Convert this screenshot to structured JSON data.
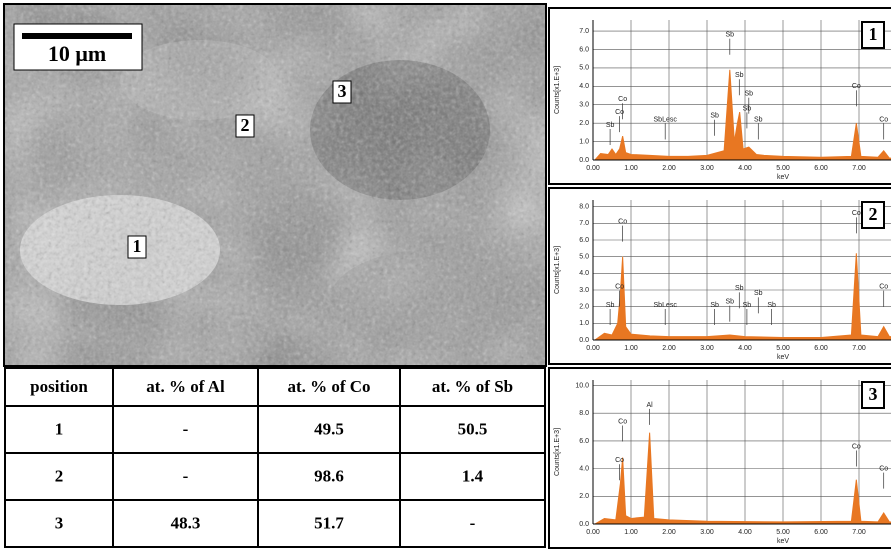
{
  "image": {
    "scale_bar": "10 μm",
    "markers": [
      "1",
      "2",
      "3"
    ]
  },
  "table": {
    "headers": [
      "position",
      "at. % of Al",
      "at. % of Co",
      "at. % of Sb"
    ],
    "rows": [
      [
        "1",
        "-",
        "49.5",
        "50.5"
      ],
      [
        "2",
        "-",
        "98.6",
        "1.4"
      ],
      [
        "3",
        "48.3",
        "51.7",
        "-"
      ]
    ]
  },
  "chart_data": [
    {
      "type": "area",
      "tag": "1",
      "x_label": "keV",
      "y_label": "Counts[x1.E+3]",
      "color": "#e87722",
      "grid": true,
      "x": [
        0.05,
        0.2,
        0.4,
        0.5,
        0.6,
        0.7,
        0.78,
        0.86,
        1.0,
        1.5,
        2.0,
        2.5,
        3.0,
        3.45,
        3.6,
        3.72,
        3.8,
        3.86,
        3.95,
        4.1,
        4.3,
        4.5,
        5.0,
        6.0,
        6.8,
        6.93,
        7.05,
        7.5,
        7.65,
        7.8,
        8.2
      ],
      "values": [
        0,
        0.35,
        0.3,
        0.6,
        0.3,
        0.6,
        1.3,
        0.4,
        0.3,
        0.25,
        0.2,
        0.2,
        0.25,
        0.5,
        4.9,
        1.0,
        2.0,
        2.6,
        0.6,
        0.7,
        0.3,
        0.25,
        0.2,
        0.15,
        0.2,
        2.0,
        0.2,
        0.15,
        0.5,
        0.1,
        0.1
      ],
      "xlim": [
        0,
        8.2
      ],
      "xticks": [
        {
          "value": 0,
          "label": "0.00"
        },
        {
          "value": 1,
          "label": "1.00"
        },
        {
          "value": 2,
          "label": "2.00"
        },
        {
          "value": 3,
          "label": "3.00"
        },
        {
          "value": 4,
          "label": "4.00"
        },
        {
          "value": 5,
          "label": "5.00"
        },
        {
          "value": 6,
          "label": "6.00"
        },
        {
          "value": 7,
          "label": "7.00"
        }
      ],
      "ylim": [
        0,
        7.6
      ],
      "yticks": [
        {
          "value": 0,
          "label": "0.0"
        },
        {
          "value": 1,
          "label": "1.0"
        },
        {
          "value": 2,
          "label": "2.0"
        },
        {
          "value": 3,
          "label": "3.0"
        },
        {
          "value": 4,
          "label": "4.0"
        },
        {
          "value": 5,
          "label": "5.0"
        },
        {
          "value": 6,
          "label": "6.0"
        },
        {
          "value": 7,
          "label": "7.0"
        }
      ],
      "peak_labels": [
        {
          "label": "Sb",
          "x": 0.45,
          "y": 1.9
        },
        {
          "label": "Co",
          "x": 0.7,
          "y": 2.6
        },
        {
          "label": "Co",
          "x": 0.78,
          "y": 3.3
        },
        {
          "label": "SbLesc",
          "x": 1.9,
          "y": 2.2
        },
        {
          "label": "Sb",
          "x": 3.2,
          "y": 2.4
        },
        {
          "label": "Sb",
          "x": 3.6,
          "y": 6.8
        },
        {
          "label": "Sb",
          "x": 3.85,
          "y": 4.6
        },
        {
          "label": "Sb",
          "x": 4.1,
          "y": 3.6
        },
        {
          "label": "Sb",
          "x": 4.05,
          "y": 2.8
        },
        {
          "label": "Sb",
          "x": 4.35,
          "y": 2.2
        },
        {
          "label": "Co",
          "x": 6.93,
          "y": 4.0
        },
        {
          "label": "Co",
          "x": 7.65,
          "y": 2.2
        }
      ]
    },
    {
      "type": "area",
      "tag": "2",
      "x_label": "keV",
      "y_label": "Counts[x1.E+3]",
      "color": "#e87722",
      "grid": true,
      "x": [
        0.05,
        0.3,
        0.5,
        0.65,
        0.72,
        0.78,
        0.86,
        1.0,
        1.5,
        2.0,
        3.0,
        3.6,
        4.0,
        5.0,
        6.0,
        6.8,
        6.93,
        7.05,
        7.5,
        7.65,
        7.8,
        8.2
      ],
      "values": [
        0,
        0.4,
        0.3,
        1.0,
        2.8,
        5.0,
        0.8,
        0.35,
        0.25,
        0.2,
        0.2,
        0.3,
        0.2,
        0.15,
        0.15,
        0.3,
        5.2,
        0.3,
        0.2,
        0.8,
        0.2,
        0.2
      ],
      "xlim": [
        0,
        8.2
      ],
      "xticks": [
        {
          "value": 0,
          "label": "0.00"
        },
        {
          "value": 1,
          "label": "1.00"
        },
        {
          "value": 2,
          "label": "2.00"
        },
        {
          "value": 3,
          "label": "3.00"
        },
        {
          "value": 4,
          "label": "4.00"
        },
        {
          "value": 5,
          "label": "5.00"
        },
        {
          "value": 6,
          "label": "6.00"
        },
        {
          "value": 7,
          "label": "7.00"
        }
      ],
      "ylim": [
        0,
        8.4
      ],
      "yticks": [
        {
          "value": 0,
          "label": "0.0"
        },
        {
          "value": 1,
          "label": "1.0"
        },
        {
          "value": 2,
          "label": "2.0"
        },
        {
          "value": 3,
          "label": "3.0"
        },
        {
          "value": 4,
          "label": "4.0"
        },
        {
          "value": 5,
          "label": "5.0"
        },
        {
          "value": 6,
          "label": "6.0"
        },
        {
          "value": 7,
          "label": "7.0"
        },
        {
          "value": 8,
          "label": "8.0"
        }
      ],
      "peak_labels": [
        {
          "label": "Co",
          "x": 0.78,
          "y": 7.1
        },
        {
          "label": "Co",
          "x": 0.7,
          "y": 3.2
        },
        {
          "label": "Sb",
          "x": 0.45,
          "y": 2.1
        },
        {
          "label": "SbLesc",
          "x": 1.9,
          "y": 2.1
        },
        {
          "label": "Sb",
          "x": 3.2,
          "y": 2.1
        },
        {
          "label": "Sb",
          "x": 3.6,
          "y": 2.3
        },
        {
          "label": "Sb",
          "x": 3.85,
          "y": 3.1
        },
        {
          "label": "Sb",
          "x": 4.05,
          "y": 2.1
        },
        {
          "label": "Sb",
          "x": 4.35,
          "y": 2.8
        },
        {
          "label": "Sb",
          "x": 4.7,
          "y": 2.1
        },
        {
          "label": "Co",
          "x": 6.93,
          "y": 7.6
        },
        {
          "label": "Co",
          "x": 7.65,
          "y": 3.2
        }
      ]
    },
    {
      "type": "area",
      "tag": "3",
      "x_label": "keV",
      "y_label": "Counts[x1.E+3]",
      "color": "#e87722",
      "grid": true,
      "x": [
        0.05,
        0.3,
        0.6,
        0.72,
        0.78,
        0.86,
        1.0,
        1.35,
        1.49,
        1.6,
        2.0,
        3.0,
        5.0,
        6.8,
        6.93,
        7.05,
        7.5,
        7.65,
        7.8,
        8.2
      ],
      "values": [
        0,
        0.4,
        0.3,
        2.9,
        4.8,
        0.6,
        0.4,
        0.5,
        6.6,
        0.4,
        0.3,
        0.2,
        0.15,
        0.2,
        3.2,
        0.2,
        0.15,
        0.8,
        0.15,
        0.1
      ],
      "xlim": [
        0,
        8.2
      ],
      "xticks": [
        {
          "value": 0,
          "label": "0.00"
        },
        {
          "value": 1,
          "label": "1.00"
        },
        {
          "value": 2,
          "label": "2.00"
        },
        {
          "value": 3,
          "label": "3.00"
        },
        {
          "value": 4,
          "label": "4.00"
        },
        {
          "value": 5,
          "label": "5.00"
        },
        {
          "value": 6,
          "label": "6.00"
        },
        {
          "value": 7,
          "label": "7.00"
        }
      ],
      "ylim": [
        0,
        10.4
      ],
      "yticks": [
        {
          "value": 0,
          "label": "0.0"
        },
        {
          "value": 2,
          "label": "2.0"
        },
        {
          "value": 4,
          "label": "4.0"
        },
        {
          "value": 6,
          "label": "6.0"
        },
        {
          "value": 8,
          "label": "8.0"
        },
        {
          "value": 10,
          "label": "10.0"
        }
      ],
      "peak_labels": [
        {
          "label": "Co",
          "x": 0.78,
          "y": 7.4
        },
        {
          "label": "Co",
          "x": 0.7,
          "y": 4.6
        },
        {
          "label": "Al",
          "x": 1.49,
          "y": 8.6
        },
        {
          "label": "Co",
          "x": 6.93,
          "y": 5.6
        },
        {
          "label": "Co",
          "x": 7.65,
          "y": 4.0
        }
      ]
    }
  ]
}
